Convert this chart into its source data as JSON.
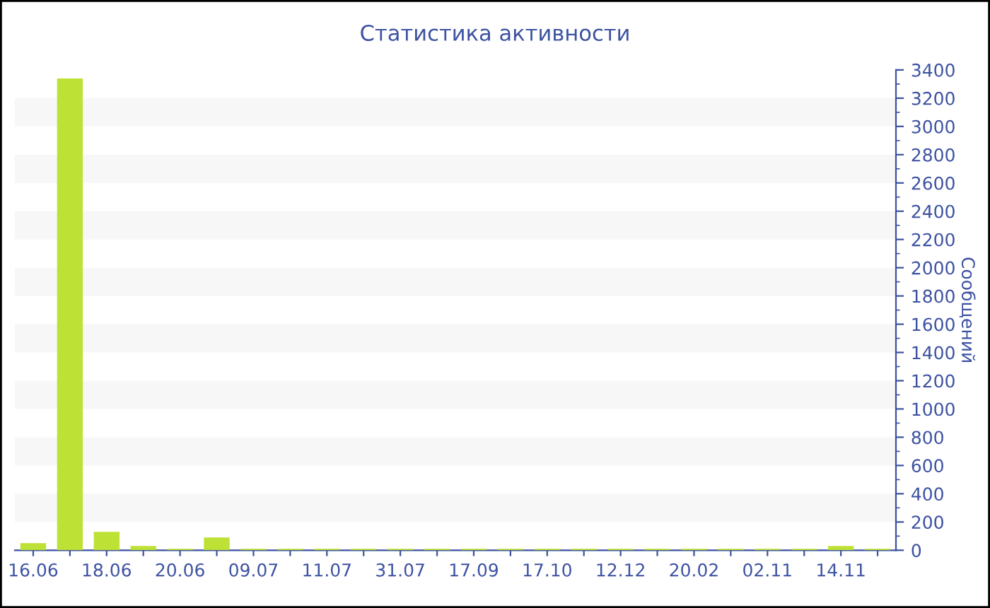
{
  "chart_data": {
    "type": "bar",
    "title": "Статистика активности",
    "ylabel": "Сообщений",
    "categories": [
      "16.06",
      null,
      "18.06",
      null,
      "20.06",
      null,
      "09.07",
      null,
      "11.07",
      null,
      "31.07",
      null,
      "17.09",
      null,
      "17.10",
      null,
      "12.12",
      null,
      "20.02",
      null,
      "02.11",
      null,
      "14.11",
      null
    ],
    "values": [
      50,
      3340,
      130,
      30,
      10,
      90,
      10,
      10,
      10,
      10,
      10,
      10,
      10,
      10,
      10,
      10,
      10,
      10,
      10,
      10,
      10,
      10,
      30,
      10
    ],
    "color": "#bde135",
    "ylim": [
      0,
      3400
    ],
    "yticks": [
      0,
      200,
      400,
      600,
      800,
      1000,
      1200,
      1400,
      1600,
      1800,
      2000,
      2200,
      2400,
      2600,
      2800,
      3000,
      3200,
      3400
    ],
    "bands": [
      {
        "axis": "y",
        "from": 200,
        "to": 400,
        "color": "#f7f7f7"
      },
      {
        "axis": "y",
        "from": 600,
        "to": 800,
        "color": "#f7f7f7"
      },
      {
        "axis": "y",
        "from": 1000,
        "to": 1200,
        "color": "#f7f7f7"
      },
      {
        "axis": "y",
        "from": 1400,
        "to": 1600,
        "color": "#f7f7f7"
      },
      {
        "axis": "y",
        "from": 1800,
        "to": 2000,
        "color": "#f7f7f7"
      },
      {
        "axis": "y",
        "from": 2200,
        "to": 2400,
        "color": "#f7f7f7"
      },
      {
        "axis": "y",
        "from": 2600,
        "to": 2800,
        "color": "#f7f7f7"
      },
      {
        "axis": "y",
        "from": 3000,
        "to": 3200,
        "color": "#f7f7f7"
      }
    ]
  }
}
